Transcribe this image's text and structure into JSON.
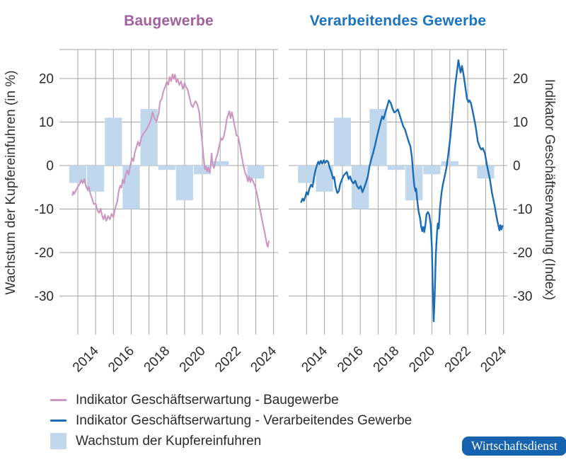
{
  "figure": {
    "left_axis_label": "Wachstum der Kupfereinfuhren (in %)",
    "right_axis_label": "Indikator Geschäftserwartung (Index)"
  },
  "legend": {
    "items": [
      {
        "label": "Indikator Geschäftserwartung - Baugewerbe",
        "swatch": "line",
        "color": "#cb97c1"
      },
      {
        "label": "Indikator Geschäftserwartung - Verarbeitendes Gewerbe",
        "swatch": "line",
        "color": "#1a6cb5"
      },
      {
        "label": "Wachstum der Kupfereinfuhren",
        "swatch": "square",
        "color": "#c0d7ed"
      }
    ]
  },
  "badge": {
    "text": "Wirtschaftsdienst",
    "background": "#1563ae",
    "text_color": "#ffffff"
  },
  "chart_data": {
    "type": "combo",
    "axes": {
      "x_gridline_years": [
        2013,
        2014,
        2015,
        2016,
        2017,
        2018,
        2019,
        2020,
        2021,
        2022,
        2023,
        2024
      ],
      "x_tick_labels": [
        "2014",
        "2016",
        "2018",
        "2020",
        "2022",
        "2024"
      ],
      "x_tick_years": [
        2014,
        2016,
        2018,
        2020,
        2022,
        2024
      ],
      "y_ticks": [
        20,
        10,
        0,
        -10,
        -20,
        -30
      ],
      "ylim": [
        -38.9,
        26.7
      ],
      "xlim": [
        2012.0,
        2024.25
      ],
      "grid_color": "#a4a4a4",
      "tick_text_color": "#2b2b2b"
    },
    "bars": {
      "name": "Wachstum der Kupfereinfuhren",
      "unit": "in %",
      "color": "#c0d7ed",
      "categories": [
        2013,
        2014,
        2015,
        2016,
        2017,
        2018,
        2019,
        2020,
        2021,
        2022,
        2023
      ],
      "values": [
        -4,
        -6,
        11,
        -10,
        13,
        -1,
        -8,
        -2,
        1,
        0,
        -3
      ]
    },
    "panels": [
      {
        "title": "Baugewerbe",
        "title_color": "#a2609c",
        "series_name": "Indikator Geschäftserwartung - Baugewerbe",
        "line_color": "#cb97c1",
        "y_tick_side": "left",
        "points": [
          [
            2012.7,
            -6.8
          ],
          [
            2012.75,
            -6.0
          ],
          [
            2012.8,
            -6.5
          ],
          [
            2012.9,
            -5.6
          ],
          [
            2013.0,
            -4.9
          ],
          [
            2013.1,
            -4.3
          ],
          [
            2013.2,
            -3.3
          ],
          [
            2013.28,
            -4.1
          ],
          [
            2013.36,
            -3.1
          ],
          [
            2013.45,
            -4.6
          ],
          [
            2013.55,
            -5.6
          ],
          [
            2013.62,
            -4.9
          ],
          [
            2013.7,
            -6.4
          ],
          [
            2013.8,
            -7.6
          ],
          [
            2013.9,
            -8.9
          ],
          [
            2014.0,
            -8.7
          ],
          [
            2014.1,
            -10.3
          ],
          [
            2014.2,
            -10.9
          ],
          [
            2014.28,
            -9.9
          ],
          [
            2014.36,
            -11.4
          ],
          [
            2014.44,
            -12.4
          ],
          [
            2014.52,
            -11.3
          ],
          [
            2014.6,
            -12.7
          ],
          [
            2014.7,
            -11.6
          ],
          [
            2014.8,
            -12.4
          ],
          [
            2014.9,
            -11.1
          ],
          [
            2015.0,
            -11.9
          ],
          [
            2015.08,
            -10.2
          ],
          [
            2015.16,
            -9.0
          ],
          [
            2015.22,
            -8.2
          ],
          [
            2015.3,
            -5.9
          ],
          [
            2015.38,
            -4.6
          ],
          [
            2015.45,
            -5.1
          ],
          [
            2015.52,
            -3.2
          ],
          [
            2015.6,
            -4.1
          ],
          [
            2015.68,
            -2.2
          ],
          [
            2015.78,
            -1.1
          ],
          [
            2015.86,
            -2.1
          ],
          [
            2015.95,
            0.1
          ],
          [
            2016.05,
            1.7
          ],
          [
            2016.12,
            1.0
          ],
          [
            2016.2,
            3.0
          ],
          [
            2016.3,
            4.3
          ],
          [
            2016.38,
            5.5
          ],
          [
            2016.46,
            4.5
          ],
          [
            2016.58,
            6.6
          ],
          [
            2016.7,
            7.4
          ],
          [
            2016.85,
            8.2
          ],
          [
            2016.98,
            9.3
          ],
          [
            2017.1,
            10.4
          ],
          [
            2017.2,
            12.3
          ],
          [
            2017.3,
            11.0
          ],
          [
            2017.42,
            10.1
          ],
          [
            2017.55,
            12.2
          ],
          [
            2017.62,
            14.7
          ],
          [
            2017.72,
            15.4
          ],
          [
            2017.8,
            16.9
          ],
          [
            2017.9,
            18.0
          ],
          [
            2018.0,
            19.3
          ],
          [
            2018.08,
            18.6
          ],
          [
            2018.17,
            20.4
          ],
          [
            2018.25,
            19.4
          ],
          [
            2018.32,
            21.0
          ],
          [
            2018.4,
            19.9
          ],
          [
            2018.46,
            20.9
          ],
          [
            2018.54,
            19.2
          ],
          [
            2018.62,
            19.8
          ],
          [
            2018.7,
            18.5
          ],
          [
            2018.8,
            19.4
          ],
          [
            2018.9,
            17.6
          ],
          [
            2019.0,
            19.0
          ],
          [
            2019.08,
            18.1
          ],
          [
            2019.18,
            17.4
          ],
          [
            2019.28,
            15.6
          ],
          [
            2019.38,
            13.9
          ],
          [
            2019.46,
            13.4
          ],
          [
            2019.55,
            14.3
          ],
          [
            2019.62,
            14.8
          ],
          [
            2019.72,
            14.0
          ],
          [
            2019.82,
            12.4
          ],
          [
            2019.9,
            9.0
          ],
          [
            2020.0,
            5.0
          ],
          [
            2020.07,
            1.7
          ],
          [
            2020.14,
            -0.9
          ],
          [
            2020.2,
            -0.2
          ],
          [
            2020.26,
            -1.4
          ],
          [
            2020.33,
            -0.5
          ],
          [
            2020.4,
            -1.6
          ],
          [
            2020.46,
            -0.4
          ],
          [
            2020.52,
            2.8
          ],
          [
            2020.58,
            0.2
          ],
          [
            2020.65,
            -0.6
          ],
          [
            2020.75,
            1.4
          ],
          [
            2020.85,
            2.6
          ],
          [
            2020.95,
            4.6
          ],
          [
            2021.05,
            6.3
          ],
          [
            2021.12,
            5.9
          ],
          [
            2021.2,
            6.6
          ],
          [
            2021.3,
            8.6
          ],
          [
            2021.38,
            10.9
          ],
          [
            2021.46,
            11.9
          ],
          [
            2021.52,
            12.5
          ],
          [
            2021.58,
            10.9
          ],
          [
            2021.66,
            12.3
          ],
          [
            2021.75,
            10.4
          ],
          [
            2021.85,
            8.4
          ],
          [
            2021.92,
            6.9
          ],
          [
            2022.0,
            6.8
          ],
          [
            2022.1,
            4.7
          ],
          [
            2022.2,
            2.4
          ],
          [
            2022.3,
            0.1
          ],
          [
            2022.4,
            -1.6
          ],
          [
            2022.5,
            -2.6
          ],
          [
            2022.56,
            -3.7
          ],
          [
            2022.62,
            -2.5
          ],
          [
            2022.7,
            -3.8
          ],
          [
            2022.76,
            -2.9
          ],
          [
            2022.85,
            -3.6
          ],
          [
            2022.95,
            -4.6
          ],
          [
            2023.05,
            -6.2
          ],
          [
            2023.15,
            -8.2
          ],
          [
            2023.25,
            -10.3
          ],
          [
            2023.35,
            -12.4
          ],
          [
            2023.45,
            -14.4
          ],
          [
            2023.55,
            -16.4
          ],
          [
            2023.64,
            -18.4
          ],
          [
            2023.68,
            -18.7
          ],
          [
            2023.73,
            -17.4
          ]
        ]
      },
      {
        "title": "Verarbeitendes Gewerbe",
        "title_color": "#1c74c0",
        "series_name": "Indikator Geschäftserwartung - Verarbeitendes Gewerbe",
        "line_color": "#1a6cb5",
        "y_tick_side": "right",
        "points": [
          [
            2012.7,
            -8.4
          ],
          [
            2012.78,
            -7.6
          ],
          [
            2012.84,
            -8.1
          ],
          [
            2012.92,
            -7.3
          ],
          [
            2013.0,
            -6.1
          ],
          [
            2013.08,
            -6.7
          ],
          [
            2013.16,
            -5.3
          ],
          [
            2013.25,
            -4.4
          ],
          [
            2013.33,
            -4.9
          ],
          [
            2013.42,
            -2.7
          ],
          [
            2013.5,
            -1.0
          ],
          [
            2013.58,
            0.1
          ],
          [
            2013.66,
            0.9
          ],
          [
            2013.72,
            0.3
          ],
          [
            2013.8,
            1.1
          ],
          [
            2013.88,
            0.4
          ],
          [
            2013.96,
            1.2
          ],
          [
            2014.04,
            0.6
          ],
          [
            2014.12,
            1.1
          ],
          [
            2014.2,
            0.9
          ],
          [
            2014.3,
            -0.6
          ],
          [
            2014.4,
            -1.7
          ],
          [
            2014.48,
            -3.0
          ],
          [
            2014.54,
            -2.6
          ],
          [
            2014.62,
            -4.9
          ],
          [
            2014.72,
            -6.3
          ],
          [
            2014.8,
            -5.9
          ],
          [
            2014.88,
            -4.2
          ],
          [
            2014.96,
            -3.4
          ],
          [
            2015.05,
            -2.4
          ],
          [
            2015.15,
            -1.9
          ],
          [
            2015.25,
            -1.5
          ],
          [
            2015.35,
            -3.1
          ],
          [
            2015.43,
            -2.5
          ],
          [
            2015.52,
            -3.6
          ],
          [
            2015.62,
            -4.1
          ],
          [
            2015.72,
            -3.5
          ],
          [
            2015.82,
            -4.7
          ],
          [
            2015.92,
            -5.3
          ],
          [
            2016.02,
            -4.7
          ],
          [
            2016.12,
            -6.1
          ],
          [
            2016.22,
            -5.1
          ],
          [
            2016.32,
            -3.9
          ],
          [
            2016.42,
            -2.5
          ],
          [
            2016.52,
            -0.1
          ],
          [
            2016.62,
            1.5
          ],
          [
            2016.72,
            3.0
          ],
          [
            2016.82,
            4.6
          ],
          [
            2016.92,
            6.4
          ],
          [
            2017.02,
            8.1
          ],
          [
            2017.12,
            9.8
          ],
          [
            2017.22,
            11.3
          ],
          [
            2017.3,
            10.7
          ],
          [
            2017.4,
            12.2
          ],
          [
            2017.5,
            13.6
          ],
          [
            2017.6,
            15.0
          ],
          [
            2017.7,
            14.4
          ],
          [
            2017.8,
            13.1
          ],
          [
            2017.9,
            12.2
          ],
          [
            2018.0,
            12.5
          ],
          [
            2018.1,
            12.9
          ],
          [
            2018.2,
            11.6
          ],
          [
            2018.3,
            10.3
          ],
          [
            2018.4,
            9.0
          ],
          [
            2018.5,
            8.3
          ],
          [
            2018.6,
            6.9
          ],
          [
            2018.7,
            5.5
          ],
          [
            2018.8,
            4.4
          ],
          [
            2018.88,
            2.0
          ],
          [
            2018.96,
            -2.0
          ],
          [
            2019.02,
            -4.8
          ],
          [
            2019.08,
            -5.9
          ],
          [
            2019.12,
            -5.3
          ],
          [
            2019.18,
            -7.9
          ],
          [
            2019.26,
            -10.6
          ],
          [
            2019.33,
            -11.9
          ],
          [
            2019.4,
            -14.0
          ],
          [
            2019.46,
            -15.1
          ],
          [
            2019.52,
            -14.1
          ],
          [
            2019.57,
            -15.3
          ],
          [
            2019.63,
            -13.9
          ],
          [
            2019.7,
            -11.2
          ],
          [
            2019.78,
            -10.7
          ],
          [
            2019.85,
            -11.3
          ],
          [
            2019.93,
            -13.5
          ],
          [
            2020.0,
            -19.0
          ],
          [
            2020.05,
            -28.0
          ],
          [
            2020.1,
            -35.8
          ],
          [
            2020.16,
            -29.5
          ],
          [
            2020.22,
            -20.5
          ],
          [
            2020.28,
            -15.7
          ],
          [
            2020.33,
            -13.3
          ],
          [
            2020.38,
            -14.5
          ],
          [
            2020.45,
            -9.7
          ],
          [
            2020.53,
            -6.5
          ],
          [
            2020.6,
            -4.6
          ],
          [
            2020.7,
            -2.7
          ],
          [
            2020.8,
            -0.8
          ],
          [
            2020.9,
            2.0
          ],
          [
            2021.0,
            5.5
          ],
          [
            2021.1,
            9.6
          ],
          [
            2021.2,
            14.0
          ],
          [
            2021.3,
            18.4
          ],
          [
            2021.4,
            21.6
          ],
          [
            2021.48,
            24.2
          ],
          [
            2021.54,
            22.8
          ],
          [
            2021.6,
            21.4
          ],
          [
            2021.68,
            22.9
          ],
          [
            2021.78,
            20.6
          ],
          [
            2021.88,
            17.6
          ],
          [
            2021.96,
            15.3
          ],
          [
            2022.04,
            14.6
          ],
          [
            2022.1,
            15.0
          ],
          [
            2022.18,
            14.4
          ],
          [
            2022.3,
            12.0
          ],
          [
            2022.44,
            9.1
          ],
          [
            2022.56,
            5.6
          ],
          [
            2022.68,
            4.2
          ],
          [
            2022.76,
            3.7
          ],
          [
            2022.84,
            4.0
          ],
          [
            2022.96,
            2.8
          ],
          [
            2023.1,
            -0.4
          ],
          [
            2023.24,
            -3.2
          ],
          [
            2023.36,
            -6.4
          ],
          [
            2023.5,
            -9.2
          ],
          [
            2023.6,
            -11.6
          ],
          [
            2023.7,
            -13.6
          ],
          [
            2023.77,
            -14.9
          ],
          [
            2023.82,
            -13.7
          ],
          [
            2023.88,
            -14.7
          ],
          [
            2023.94,
            -13.9
          ]
        ]
      }
    ]
  }
}
